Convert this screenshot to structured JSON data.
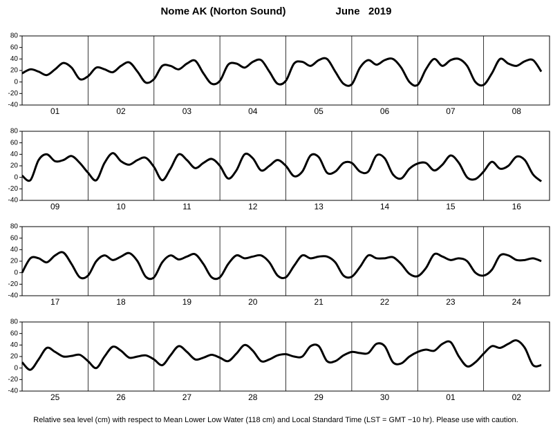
{
  "title": "Nome AK (Norton Sound)",
  "date": "June   2019",
  "footnote": "Relative sea level (cm) with respect to Mean Lower Low Water (118 cm) and Local Standard Time (LST = GMT −10 hr). Please use with caution.",
  "chart_data": [
    {
      "type": "line",
      "color": "#000000",
      "ylim": [
        -40,
        80
      ],
      "yticks": [
        -40,
        -20,
        0,
        20,
        40,
        60,
        80
      ],
      "categories": [
        "01",
        "02",
        "03",
        "04",
        "05",
        "06",
        "07",
        "08"
      ],
      "values": [
        [
          15,
          22,
          18,
          12,
          22,
          33,
          25,
          5
        ],
        [
          10,
          25,
          22,
          17,
          28,
          34,
          18,
          -1
        ],
        [
          5,
          28,
          28,
          22,
          32,
          37,
          15,
          -3
        ],
        [
          2,
          30,
          32,
          25,
          35,
          38,
          18,
          -3
        ],
        [
          2,
          32,
          35,
          28,
          38,
          40,
          18,
          -3
        ],
        [
          -4,
          25,
          38,
          30,
          38,
          40,
          25,
          0
        ],
        [
          -5,
          22,
          40,
          28,
          38,
          40,
          28,
          0
        ],
        [
          -5,
          15,
          40,
          32,
          28,
          36,
          38,
          18
        ]
      ]
    },
    {
      "type": "line",
      "color": "#000000",
      "ylim": [
        -40,
        80
      ],
      "yticks": [
        -40,
        -20,
        0,
        20,
        40,
        60,
        80
      ],
      "categories": [
        "09",
        "10",
        "11",
        "12",
        "13",
        "14",
        "15",
        "16"
      ],
      "values": [
        [
          3,
          -5,
          30,
          40,
          28,
          30,
          37,
          25
        ],
        [
          8,
          -5,
          25,
          42,
          28,
          22,
          30,
          34
        ],
        [
          18,
          -5,
          15,
          40,
          30,
          16,
          25,
          32
        ],
        [
          20,
          -2,
          12,
          40,
          33,
          12,
          20,
          30
        ],
        [
          20,
          2,
          10,
          38,
          35,
          8,
          10,
          25
        ],
        [
          25,
          10,
          10,
          38,
          33,
          5,
          -2,
          15
        ],
        [
          24,
          25,
          12,
          22,
          38,
          25,
          0,
          -3
        ],
        [
          10,
          27,
          15,
          20,
          36,
          30,
          5,
          -7
        ]
      ]
    },
    {
      "type": "line",
      "color": "#000000",
      "ylim": [
        -40,
        80
      ],
      "yticks": [
        -40,
        -20,
        0,
        20,
        40,
        60,
        80
      ],
      "categories": [
        "17",
        "18",
        "19",
        "20",
        "21",
        "22",
        "23",
        "24"
      ],
      "values": [
        [
          0,
          25,
          25,
          18,
          30,
          35,
          15,
          -8
        ],
        [
          -5,
          20,
          30,
          22,
          28,
          34,
          20,
          -7
        ],
        [
          -8,
          18,
          30,
          23,
          28,
          32,
          15,
          -8
        ],
        [
          -8,
          15,
          30,
          25,
          28,
          30,
          18,
          -5
        ],
        [
          -8,
          12,
          30,
          25,
          28,
          28,
          18,
          -5
        ],
        [
          -7,
          10,
          30,
          25,
          25,
          27,
          15,
          -2
        ],
        [
          -6,
          8,
          32,
          28,
          22,
          25,
          20,
          0
        ],
        [
          -5,
          5,
          30,
          30,
          22,
          22,
          25,
          20
        ]
      ]
    },
    {
      "type": "line",
      "color": "#000000",
      "ylim": [
        -40,
        80
      ],
      "yticks": [
        -40,
        -20,
        0,
        20,
        40,
        60,
        80
      ],
      "categories": [
        "25",
        "26",
        "27",
        "28",
        "29",
        "30",
        "01",
        "02"
      ],
      "values": [
        [
          10,
          -3,
          15,
          35,
          28,
          20,
          21,
          23
        ],
        [
          12,
          0,
          20,
          37,
          30,
          18,
          20,
          22
        ],
        [
          15,
          5,
          22,
          38,
          28,
          15,
          18,
          23
        ],
        [
          18,
          12,
          25,
          40,
          30,
          12,
          15,
          22
        ],
        [
          24,
          20,
          20,
          38,
          38,
          12,
          12,
          22
        ],
        [
          28,
          26,
          26,
          42,
          38,
          10,
          8,
          20
        ],
        [
          28,
          32,
          30,
          42,
          45,
          20,
          3,
          10
        ],
        [
          25,
          38,
          35,
          42,
          48,
          35,
          5,
          5
        ]
      ]
    }
  ]
}
